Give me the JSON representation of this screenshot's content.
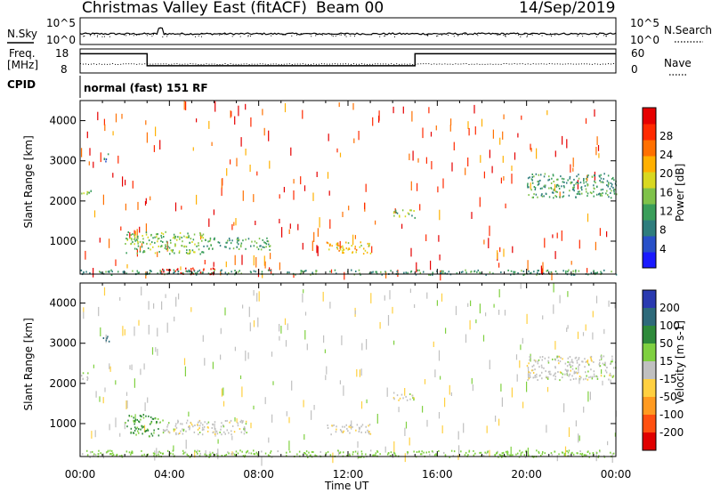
{
  "header": {
    "title": "Christmas Valley East (fitACF)",
    "beam": "Beam 00",
    "date": "14/Sep/2019"
  },
  "noise_panel": {
    "left_label": "N.Sky",
    "right_label": "N.Search",
    "left_ticks": [
      "10^5",
      "10^0"
    ],
    "right_ticks": [
      "10^5",
      "10^0"
    ]
  },
  "freq_panel": {
    "left_label_line1": "Freq.",
    "left_label_line2": "[MHz]",
    "right_label": "Nave",
    "left_ticks": [
      "18",
      "8"
    ],
    "right_ticks": [
      "60",
      "0"
    ],
    "cpid_label": "CPID",
    "cpid_text": "normal (fast) 151 RF",
    "freq_steps": [
      {
        "t0": 0,
        "t1": 3,
        "mhz": 16
      },
      {
        "t0": 3,
        "t1": 15,
        "mhz": 11
      },
      {
        "t0": 15,
        "t1": 24,
        "mhz": 16
      }
    ]
  },
  "chart_data": [
    {
      "type": "heatmap",
      "title": "Power",
      "ylabel": "Slant Range [km]",
      "xlabel": "Time UT",
      "xlim": [
        0,
        24
      ],
      "ylim": [
        180,
        4500
      ],
      "x_ticks": [
        "00:00",
        "04:00",
        "08:00",
        "12:00",
        "16:00",
        "20:00",
        "00:00"
      ],
      "y_ticks": [
        1000,
        2000,
        3000,
        4000
      ],
      "colorbar_label": "Power [dB]",
      "colorbar_ticks": [
        "4",
        "8",
        "12",
        "16",
        "20",
        "24",
        "28"
      ],
      "colorbar_colors": [
        "#1a1aff",
        "#2850c8",
        "#2e7d7d",
        "#3a9e5a",
        "#7fc24a",
        "#d8d820",
        "#ffb000",
        "#ff7000",
        "#ff2a00",
        "#e60000"
      ],
      "regions": [
        {
          "t0": 1.0,
          "t1": 1.3,
          "r0": 3000,
          "r1": 3200,
          "value": 6
        },
        {
          "t0": 0.0,
          "t1": 0.5,
          "r0": 2100,
          "r1": 2300,
          "value": 12
        },
        {
          "t0": 2.0,
          "t1": 5.5,
          "r0": 700,
          "r1": 1250,
          "value": 13
        },
        {
          "t0": 5.5,
          "t1": 8.5,
          "r0": 800,
          "r1": 1100,
          "value": 10
        },
        {
          "t0": 11.0,
          "t1": 13.0,
          "r0": 700,
          "r1": 1000,
          "value": 18
        },
        {
          "t0": 14.0,
          "t1": 15.0,
          "r0": 1600,
          "r1": 1800,
          "value": 12
        },
        {
          "t0": 20.0,
          "t1": 24.0,
          "r0": 2100,
          "r1": 2700,
          "value": 10
        },
        {
          "t0": 3.5,
          "t1": 6.0,
          "r0": 180,
          "r1": 350,
          "value": 28
        },
        {
          "t0": 0.0,
          "t1": 24.0,
          "r0": 180,
          "r1": 300,
          "value": 10
        }
      ]
    },
    {
      "type": "heatmap",
      "title": "Velocity",
      "ylabel": "Slant Range [km]",
      "xlabel": "Time UT",
      "xlim": [
        0,
        24
      ],
      "ylim": [
        180,
        4500
      ],
      "x_ticks": [
        "00:00",
        "04:00",
        "08:00",
        "12:00",
        "16:00",
        "20:00",
        "00:00"
      ],
      "y_ticks": [
        1000,
        2000,
        3000,
        4000
      ],
      "colorbar_label": "Velocity [m s-1]",
      "colorbar_ticks": [
        "200",
        "100",
        "50",
        "15",
        "-15",
        "-50",
        "-100",
        "-200"
      ],
      "colorbar_colors": [
        "#2a3ab0",
        "#2e6a7a",
        "#2e8a3a",
        "#7fd040",
        "#c0c0c0",
        "#ffd040",
        "#ff9a20",
        "#ff5010",
        "#e00000"
      ],
      "regions": [
        {
          "t0": 1.0,
          "t1": 1.3,
          "r0": 3000,
          "r1": 3200,
          "value": 150
        },
        {
          "t0": 0.0,
          "t1": 0.5,
          "r0": 2100,
          "r1": 2300,
          "value": 0
        },
        {
          "t0": 2.0,
          "t1": 3.5,
          "r0": 700,
          "r1": 1250,
          "value": 60
        },
        {
          "t0": 3.5,
          "t1": 7.5,
          "r0": 750,
          "r1": 1100,
          "value": 0
        },
        {
          "t0": 11.0,
          "t1": 13.0,
          "r0": 750,
          "r1": 1000,
          "value": -5
        },
        {
          "t0": 14.0,
          "t1": 15.0,
          "r0": 1600,
          "r1": 1800,
          "value": 0
        },
        {
          "t0": 20.0,
          "t1": 24.0,
          "r0": 2100,
          "r1": 2700,
          "value": 0
        },
        {
          "t0": 0.0,
          "t1": 24.0,
          "r0": 180,
          "r1": 350,
          "value": 30
        }
      ]
    }
  ]
}
